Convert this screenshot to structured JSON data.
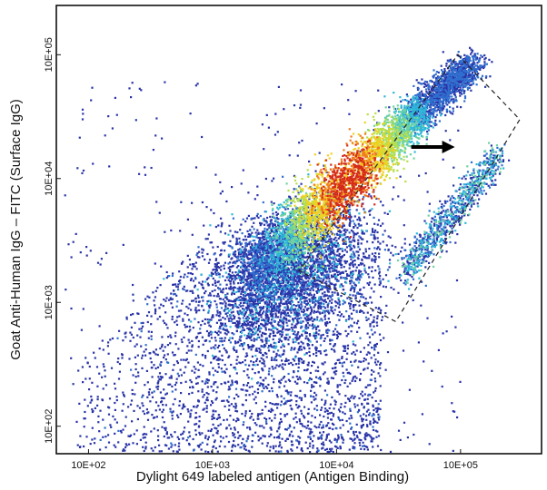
{
  "chart_data": {
    "type": "heatmap",
    "subtype": "flow-cytometry density dot plot",
    "title": "",
    "xlabel": "Dylight 649 labeled antigen (Antigen Binding)",
    "ylabel": "Goat Anti-Human IgG – FITC (Surface IgG)",
    "xscale": "log",
    "yscale": "log",
    "xlim": [
      55,
      450000
    ],
    "ylim": [
      60,
      250000
    ],
    "xticks": [
      {
        "value": 100,
        "label": "10E+02"
      },
      {
        "value": 1000,
        "label": "10E+03"
      },
      {
        "value": 10000,
        "label": "10E+04"
      },
      {
        "value": 100000,
        "label": "10E+05"
      }
    ],
    "yticks": [
      {
        "value": 100,
        "label": "10E+02"
      },
      {
        "value": 1000,
        "label": "10E+03"
      },
      {
        "value": 10000,
        "label": "10E+04"
      },
      {
        "value": 100000,
        "label": "10E+05"
      }
    ],
    "grid": false,
    "legend": "none",
    "colormap": [
      "#2a35a8",
      "#2f6fcf",
      "#2fb8d8",
      "#6fd3a0",
      "#b8e04a",
      "#f0d020",
      "#f07a20",
      "#d42a1a"
    ],
    "populations": [
      {
        "name": "main diagonal population",
        "x_range": [
          1500,
          150000
        ],
        "y_range": [
          1500,
          100000
        ],
        "peak": [
          8000,
          7000
        ]
      },
      {
        "name": "background scatter",
        "x_range": [
          60,
          30000
        ],
        "y_range": [
          60,
          4000
        ]
      },
      {
        "name": "gated sub-population",
        "x_range": [
          30000,
          200000
        ],
        "y_range": [
          1500,
          15000
        ]
      }
    ],
    "annotations": [
      {
        "type": "dashed-rectangle",
        "description": "gate around sub-population",
        "corners_data": [
          [
            95000,
            100000
          ],
          [
            300000,
            30000
          ],
          [
            30000,
            700
          ],
          [
            5000,
            1800
          ]
        ]
      },
      {
        "type": "arrow",
        "direction": "right",
        "from": [
          40000,
          18000
        ],
        "to": [
          90000,
          18000
        ]
      }
    ]
  }
}
